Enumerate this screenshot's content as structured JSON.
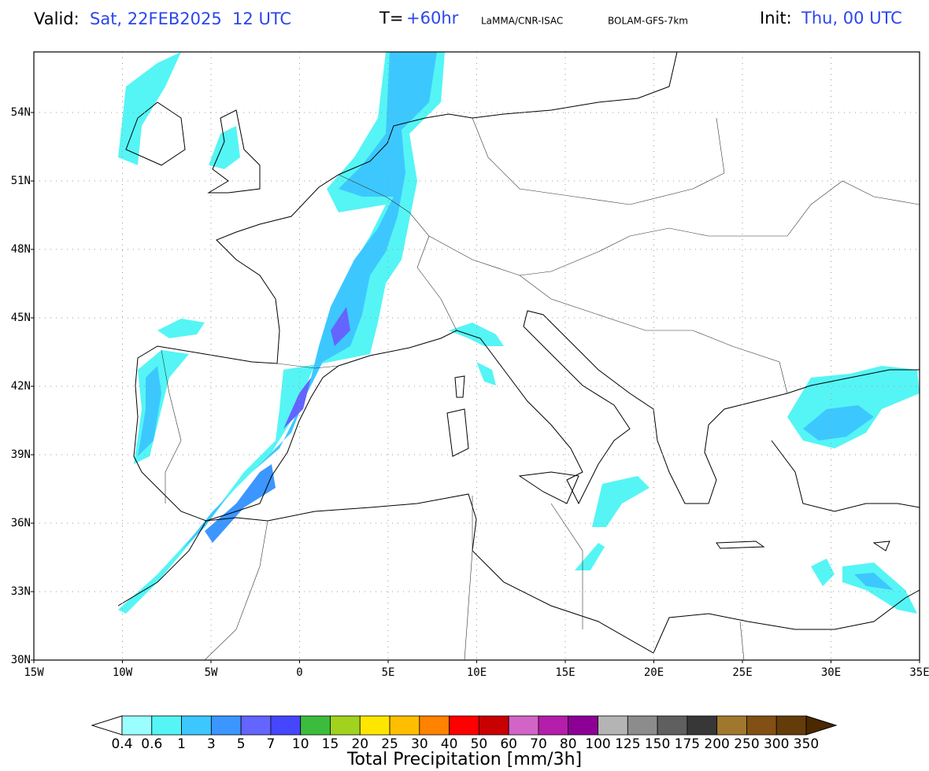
{
  "header": {
    "valid_label": "Valid:",
    "valid_value": "Sat, 22FEB2025  12 UTC",
    "t_label": "T=",
    "t_value": "+60hr",
    "source": "LaMMA/CNR-ISAC",
    "model": "BOLAM-GFS-7km",
    "init_label": "Init:",
    "init_value": "Thu, 00 UTC"
  },
  "map": {
    "lat_ticks": [
      "54N",
      "51N",
      "48N",
      "45N",
      "42N",
      "39N",
      "36N",
      "33N",
      "30N"
    ],
    "lon_ticks": [
      "15W",
      "10W",
      "5W",
      "0",
      "5E",
      "10E",
      "15E",
      "20E",
      "25E",
      "30E",
      "35E"
    ]
  },
  "colorbar": {
    "title": "Total Precipitation [mm/3h]",
    "labels": [
      "0.4",
      "0.6",
      "1",
      "3",
      "5",
      "7",
      "10",
      "15",
      "20",
      "25",
      "30",
      "40",
      "50",
      "60",
      "70",
      "80",
      "100",
      "125",
      "150",
      "175",
      "200",
      "250",
      "300",
      "350"
    ],
    "below_color": "#ffffff",
    "colors": [
      "#9bffff",
      "#55f5f5",
      "#3cc8ff",
      "#3c96ff",
      "#6464ff",
      "#4646ff",
      "#3cbc3c",
      "#a0d21e",
      "#ffe600",
      "#ffbe00",
      "#ff8200",
      "#ff0000",
      "#c80000",
      "#d264c8",
      "#b41eaa",
      "#8c0096",
      "#b4b4b4",
      "#8c8c8c",
      "#5f5f5f",
      "#373737",
      "#a0782d",
      "#825014",
      "#643c0a"
    ],
    "above_color": "#4b2800"
  }
}
